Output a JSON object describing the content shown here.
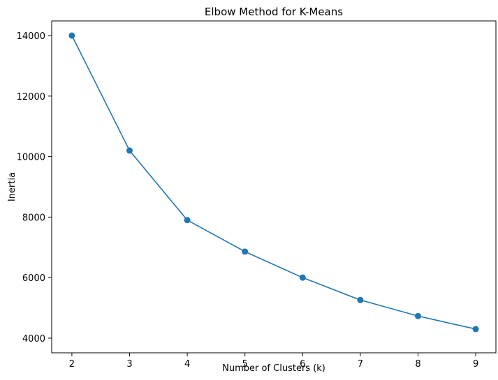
{
  "chart_data": {
    "type": "line",
    "title": "Elbow Method for K-Means",
    "xlabel": "Number of Clusters (k)",
    "ylabel": "Inertia",
    "x": [
      2,
      3,
      4,
      5,
      6,
      7,
      8,
      9
    ],
    "series": [
      {
        "values": [
          14000,
          10200,
          7900,
          6860,
          6000,
          5260,
          4730,
          4300
        ],
        "color": "#1f77b4",
        "marker": "circle"
      }
    ],
    "xlim": [
      1.65,
      9.35
    ],
    "ylim": [
      3515,
      14485
    ],
    "xticks": [
      2,
      3,
      4,
      5,
      6,
      7,
      8,
      9
    ],
    "yticks": [
      4000,
      6000,
      8000,
      10000,
      12000,
      14000
    ],
    "grid": false,
    "legend": "none"
  }
}
